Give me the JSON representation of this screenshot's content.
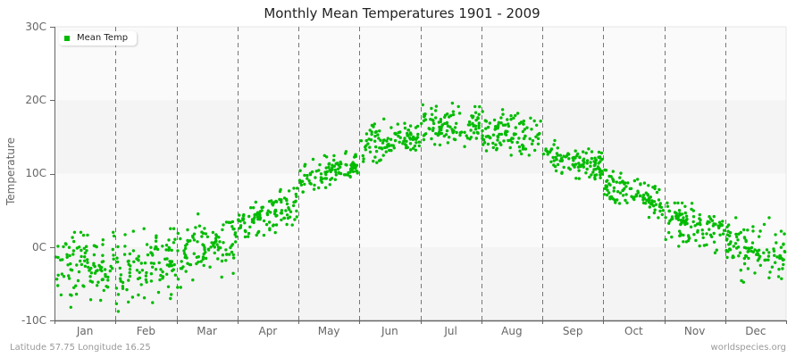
{
  "header": {
    "title": "Monthly Mean Temperatures 1901 - 2009"
  },
  "footer": {
    "location": "Latitude 57.75 Longitude 16.25",
    "source": "worldspecies.org"
  },
  "legend": {
    "label": "Mean Temp",
    "color": "#00bb00"
  },
  "axes": {
    "ylabel": "Temperature",
    "yticks": [
      "30C",
      "20C",
      "10C",
      "0C",
      "-10C"
    ],
    "xticks": [
      "Jan",
      "Feb",
      "Mar",
      "Apr",
      "May",
      "Jun",
      "Jul",
      "Aug",
      "Sep",
      "Oct",
      "Nov",
      "Dec"
    ]
  },
  "colors": {
    "point": "#00bb00",
    "band_light": "#fafafa",
    "band_dark": "#f4f4f4",
    "divider": "#777777",
    "axis": "#666666"
  },
  "chart_data": {
    "type": "scatter",
    "title": "Monthly Mean Temperatures 1901 - 2009",
    "xlabel": "",
    "ylabel": "Temperature",
    "ylim": [
      -10,
      30
    ],
    "yticks": [
      -10,
      0,
      10,
      20,
      30
    ],
    "categories": [
      "Jan",
      "Feb",
      "Mar",
      "Apr",
      "May",
      "Jun",
      "Jul",
      "Aug",
      "Sep",
      "Oct",
      "Nov",
      "Dec"
    ],
    "years": [
      1901,
      2009
    ],
    "points_per_month": 109,
    "legend": [
      "Mean Temp"
    ],
    "legend_position": "top-left",
    "grid": "alternating horizontal bands, dashed vertical month dividers",
    "series": [
      {
        "name": "Mean Temp",
        "monthly_mean": [
          -2.5,
          -2.5,
          0.0,
          4.5,
          10.0,
          14.5,
          16.5,
          15.5,
          11.8,
          7.3,
          3.0,
          -0.5
        ],
        "monthly_min": [
          -10.0,
          -10.0,
          -5.5,
          1.0,
          7.5,
          11.5,
          13.5,
          12.5,
          9.0,
          4.0,
          -1.0,
          -5.5
        ],
        "monthly_max": [
          2.0,
          2.5,
          4.5,
          8.0,
          13.0,
          18.0,
          20.0,
          19.5,
          15.0,
          10.5,
          6.0,
          4.0
        ],
        "monthly_trend_within": [
          1.5,
          2.5,
          3.0,
          3.0,
          2.5,
          2.0,
          0.5,
          -1.0,
          -1.5,
          -2.5,
          -2.5,
          -1.5
        ]
      }
    ]
  }
}
